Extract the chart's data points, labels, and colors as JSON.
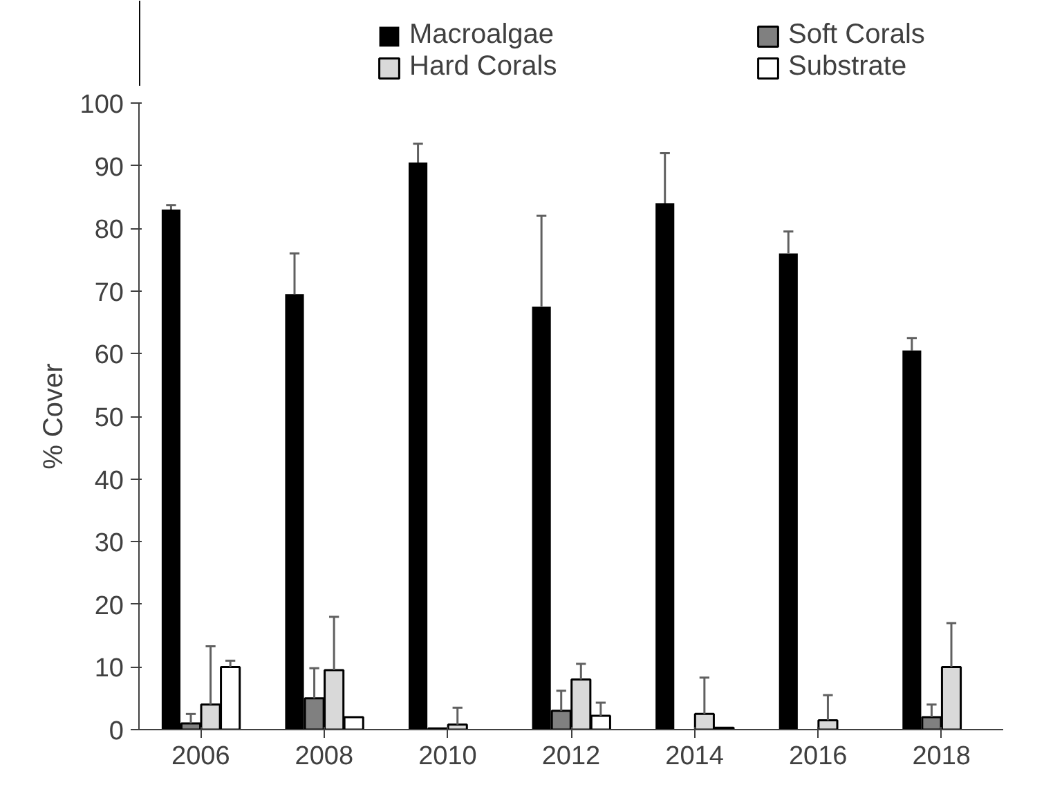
{
  "chart_data": {
    "type": "bar",
    "ylabel": "% Cover",
    "categories": [
      "2006",
      "2008",
      "2010",
      "2012",
      "2014",
      "2016",
      "2018"
    ],
    "ylim": [
      0,
      100
    ],
    "yticks": [
      0,
      10,
      20,
      30,
      40,
      50,
      60,
      70,
      80,
      90,
      100
    ],
    "grid": false,
    "legend": "top",
    "series": [
      {
        "name": "Macroalgae",
        "color": "#000000",
        "values": [
          83,
          69.5,
          90.5,
          67.5,
          84,
          76,
          60.5
        ],
        "errors": [
          0.7,
          6.5,
          3,
          14.5,
          8,
          3.5,
          2
        ]
      },
      {
        "name": "Soft Corals",
        "color": "#808080",
        "values": [
          1,
          5,
          0.2,
          3,
          0,
          0,
          2
        ],
        "errors": [
          1.5,
          4.8,
          null,
          3.2,
          null,
          null,
          2
        ]
      },
      {
        "name": "Hard Corals",
        "color": "#d9d9d9",
        "values": [
          4,
          9.5,
          0.8,
          8,
          2.5,
          1.5,
          10
        ],
        "errors": [
          9.3,
          8.5,
          2.7,
          2.5,
          5.8,
          4,
          7
        ]
      },
      {
        "name": "Substrate",
        "color": "#ffffff",
        "values": [
          10,
          2,
          0,
          2.2,
          0.3,
          0,
          0
        ],
        "errors": [
          1,
          null,
          null,
          2.1,
          null,
          null,
          null
        ]
      }
    ]
  }
}
